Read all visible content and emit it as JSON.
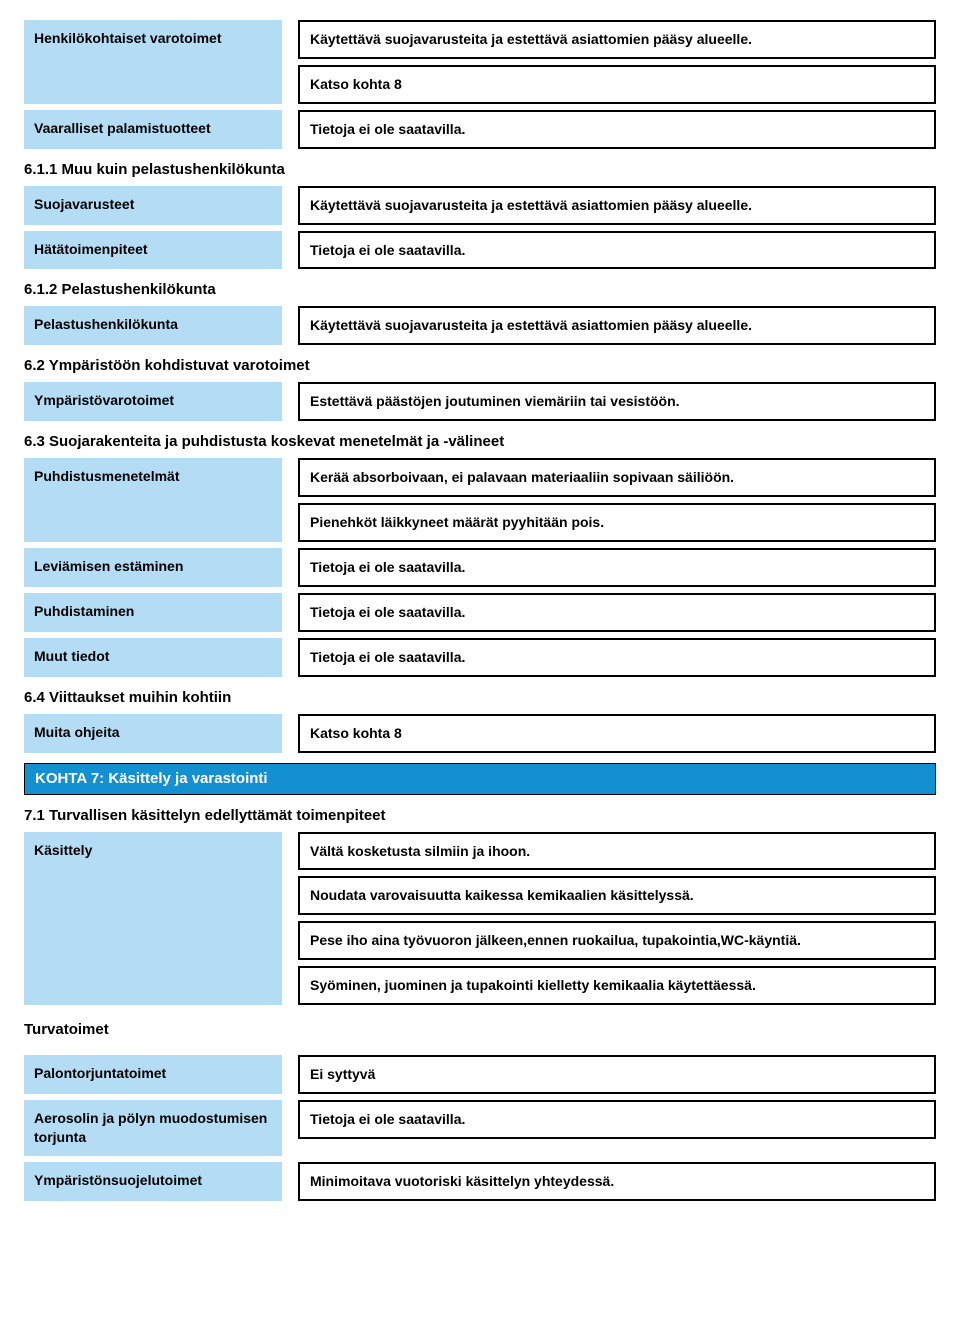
{
  "colors": {
    "label_bg": "#b5dcf5",
    "banner_bg": "#1390d1",
    "banner_text": "#ffffff",
    "border": "#000000",
    "page_bg": "#ffffff",
    "text": "#000000"
  },
  "rows": {
    "henkilokohtaiset": {
      "label": "Henkilökohtaiset varotoimet",
      "v1": "Käytettävä suojavarusteita ja estettävä asiattomien pääsy alueelle.",
      "v2": "Katso kohta 8"
    },
    "vaaralliset": {
      "label": "Vaaralliset palamistuotteet",
      "v1": "Tietoja ei ole saatavilla."
    },
    "h611": "6.1.1 Muu kuin pelastushenkilökunta",
    "suojavarusteet": {
      "label": "Suojavarusteet",
      "v1": "Käytettävä suojavarusteita ja estettävä asiattomien pääsy alueelle."
    },
    "hatatoimenpiteet": {
      "label": "Hätätoimenpiteet",
      "v1": "Tietoja ei ole saatavilla."
    },
    "h612": "6.1.2 Pelastushenkilökunta",
    "pelastushenkilokunta": {
      "label": "Pelastushenkilökunta",
      "v1": "Käytettävä suojavarusteita ja estettävä asiattomien pääsy alueelle."
    },
    "h62": "6.2 Ympäristöön kohdistuvat varotoimet",
    "ymparistovarotoimet": {
      "label": "Ympäristövarotoimet",
      "v1": "Estettävä päästöjen joutuminen viemäriin tai vesistöön."
    },
    "h63": "6.3 Suojarakenteita ja puhdistusta koskevat menetelmät ja -välineet",
    "puhdistusmenetelmat": {
      "label": "Puhdistusmenetelmät",
      "v1": "Kerää absorboivaan, ei palavaan materiaaliin sopivaan säiliöön.",
      "v2": "Pienehköt läikkyneet määrät pyyhitään pois."
    },
    "leviamisen": {
      "label": "Leviämisen estäminen",
      "v1": "Tietoja ei ole saatavilla."
    },
    "puhdistaminen": {
      "label": "Puhdistaminen",
      "v1": "Tietoja ei ole saatavilla."
    },
    "muuttiedot": {
      "label": "Muut tiedot",
      "v1": "Tietoja ei ole saatavilla."
    },
    "h64": "6.4 Viittaukset muihin kohtiin",
    "muitaohjeita": {
      "label": "Muita ohjeita",
      "v1": "Katso kohta 8"
    },
    "section7": "KOHTA 7: Käsittely ja varastointi",
    "h71": "7.1 Turvallisen käsittelyn edellyttämät toimenpiteet",
    "kasittely": {
      "label": "Käsittely",
      "v1": "Vältä kosketusta silmiin ja ihoon.",
      "v2": "Noudata varovaisuutta kaikessa kemikaalien käsittelyssä.",
      "v3": "Pese iho aina työvuoron jälkeen,ennen ruokailua, tupakointia,WC-käyntiä.",
      "v4": "Syöminen, juominen ja tupakointi kielletty kemikaalia käytettäessä."
    },
    "turvatoimet": "Turvatoimet",
    "palontorjunta": {
      "label": "Palontorjuntatoimet",
      "v1": "Ei syttyvä"
    },
    "aerosolin": {
      "label": "Aerosolin ja pölyn muodostumisen torjunta",
      "v1": "Tietoja ei ole saatavilla."
    },
    "ymparistonsuojelu": {
      "label": "Ympäristönsuojelutoimet",
      "v1": "Minimoitava vuotoriski käsittelyn yhteydessä."
    }
  }
}
